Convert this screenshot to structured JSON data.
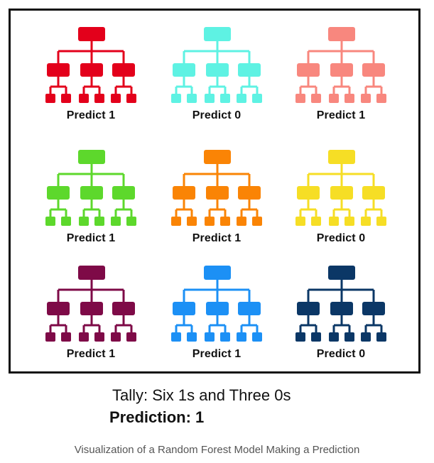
{
  "trees": [
    {
      "label": "Predict 1",
      "color": "#e3001b"
    },
    {
      "label": "Predict 0",
      "color": "#5ef2e3"
    },
    {
      "label": "Predict 1",
      "color": "#f8877e"
    },
    {
      "label": "Predict 1",
      "color": "#5dd82c"
    },
    {
      "label": "Predict 1",
      "color": "#fa8405"
    },
    {
      "label": "Predict 0",
      "color": "#f6de25"
    },
    {
      "label": "Predict 1",
      "color": "#7e0a47"
    },
    {
      "label": "Predict 1",
      "color": "#1c90f5"
    },
    {
      "label": "Predict 0",
      "color": "#0b3766"
    }
  ],
  "tally": "Tally: Six 1s and Three 0s",
  "prediction": "Prediction: 1",
  "caption": "Visualization of a Random Forest Model Making a Prediction"
}
